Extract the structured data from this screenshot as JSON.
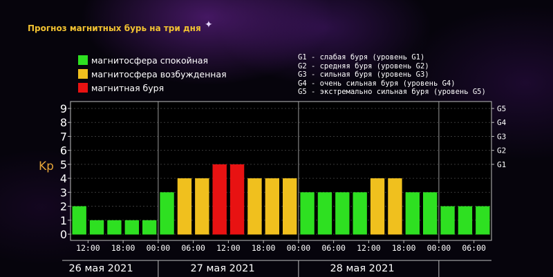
{
  "title": "Прогноз магнитных бурь на три дня",
  "legend": [
    {
      "label": "магнитосфера спокойная",
      "color": "#2ee021"
    },
    {
      "label": "магнитосфера возбужденная",
      "color": "#f0c01e"
    },
    {
      "label": "магнитная буря",
      "color": "#e81212"
    }
  ],
  "g_legend": [
    "G1 - слабая буря (уровень G1)",
    "G2 - средняя буря (уровень G2)",
    "G3 - сильная буря (уровень G3)",
    "G4 - очень сильная буря (уровень G4)",
    "G5 - экстремально сильная буря (уровень G5)"
  ],
  "chart_data": {
    "type": "bar",
    "ylabel": "Kp",
    "ylim": [
      0,
      9
    ],
    "y_ticks": [
      "0",
      "1",
      "2",
      "3",
      "4",
      "5",
      "6",
      "7",
      "8",
      "9"
    ],
    "right_ticks": [
      {
        "label": "G1",
        "kp": 5
      },
      {
        "label": "G2",
        "kp": 6
      },
      {
        "label": "G3",
        "kp": 7
      },
      {
        "label": "G4",
        "kp": 8
      },
      {
        "label": "G5",
        "kp": 9
      }
    ],
    "x_tick_labels": [
      "12:00",
      "18:00",
      "00:00",
      "06:00",
      "12:00",
      "18:00",
      "00:00",
      "06:00",
      "12:00",
      "18:00",
      "00:00",
      "06:00"
    ],
    "day_labels": [
      "26 мая 2021",
      "27 мая 2021",
      "28 мая 2021"
    ],
    "grid": true,
    "values": [
      2,
      1,
      1,
      1,
      1,
      3,
      4,
      4,
      5,
      5,
      4,
      4,
      4,
      3,
      3,
      3,
      3,
      4,
      4,
      3,
      3,
      2,
      2,
      2
    ],
    "colors": [
      "#2ee021",
      "#2ee021",
      "#2ee021",
      "#2ee021",
      "#2ee021",
      "#2ee021",
      "#f0c01e",
      "#f0c01e",
      "#e81212",
      "#e81212",
      "#f0c01e",
      "#f0c01e",
      "#f0c01e",
      "#2ee021",
      "#2ee021",
      "#2ee021",
      "#2ee021",
      "#f0c01e",
      "#f0c01e",
      "#2ee021",
      "#2ee021",
      "#2ee021",
      "#2ee021",
      "#2ee021"
    ]
  }
}
